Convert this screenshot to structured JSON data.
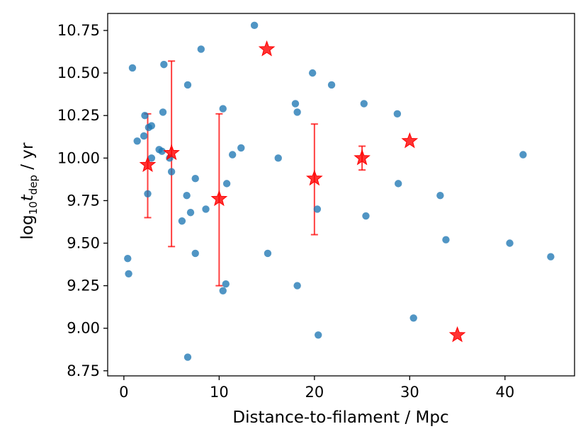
{
  "chart_data": {
    "type": "scatter",
    "title": "",
    "xlabel": "Distance-to-filament / Mpc",
    "ylabel": {
      "prefix": "log",
      "base": "10",
      "var": "t",
      "sub": "dep",
      "suffix": " / yr"
    },
    "xlim": [
      -1.7,
      47.3
    ],
    "ylim": [
      8.72,
      10.85
    ],
    "xticks": [
      0,
      10,
      20,
      30,
      40
    ],
    "xtick_labels": [
      "0",
      "10",
      "20",
      "30",
      "40"
    ],
    "yticks": [
      8.75,
      9.0,
      9.25,
      9.5,
      9.75,
      10.0,
      10.25,
      10.5,
      10.75
    ],
    "ytick_labels": [
      "8.75",
      "9.00",
      "9.25",
      "9.50",
      "9.75",
      "10.00",
      "10.25",
      "10.50",
      "10.75"
    ],
    "grid": false,
    "legend": "none",
    "colors": {
      "points": "#1f77b4",
      "stars": "#ff0000",
      "errorbars": "#ff0000"
    },
    "series": [
      {
        "marker": "circle",
        "x": [
          0.4,
          0.5,
          0.9,
          1.4,
          2.1,
          2.2,
          2.5,
          2.6,
          2.9,
          2.9,
          3.7,
          4.0,
          4.1,
          4.2,
          4.8,
          5.0,
          6.1,
          6.6,
          6.7,
          6.7,
          7.0,
          7.5,
          7.5,
          8.1,
          8.6,
          10.4,
          10.4,
          10.7,
          10.8,
          11.4,
          12.3,
          13.7,
          15.1,
          16.2,
          18.0,
          18.2,
          18.2,
          19.8,
          20.3,
          20.4,
          21.8,
          25.2,
          25.4,
          28.7,
          28.8,
          30.4,
          33.2,
          33.8,
          40.5,
          41.9,
          44.8
        ],
        "y": [
          9.41,
          9.32,
          10.53,
          10.1,
          10.13,
          10.25,
          9.79,
          10.18,
          10.19,
          10.0,
          10.05,
          10.04,
          10.27,
          10.55,
          10.0,
          9.92,
          9.63,
          9.78,
          10.43,
          8.83,
          9.68,
          9.88,
          9.44,
          10.64,
          9.7,
          9.22,
          10.29,
          9.26,
          9.85,
          10.02,
          10.06,
          10.78,
          9.44,
          10.0,
          10.32,
          10.27,
          9.25,
          10.5,
          9.7,
          8.96,
          10.43,
          10.32,
          9.66,
          10.26,
          9.85,
          9.06,
          9.78,
          9.52,
          9.5,
          10.02,
          9.42
        ]
      },
      {
        "marker": "star",
        "x": [
          2.5,
          5.0,
          10.0,
          15.0,
          20.0,
          25.0,
          30.0,
          35.0
        ],
        "y": [
          9.96,
          10.03,
          9.76,
          10.64,
          9.88,
          10.0,
          10.1,
          8.96
        ],
        "yerr_low": [
          9.65,
          9.48,
          9.25,
          null,
          9.55,
          9.93,
          null,
          null
        ],
        "yerr_high": [
          10.26,
          10.57,
          10.26,
          null,
          10.2,
          10.07,
          null,
          null
        ]
      }
    ]
  }
}
